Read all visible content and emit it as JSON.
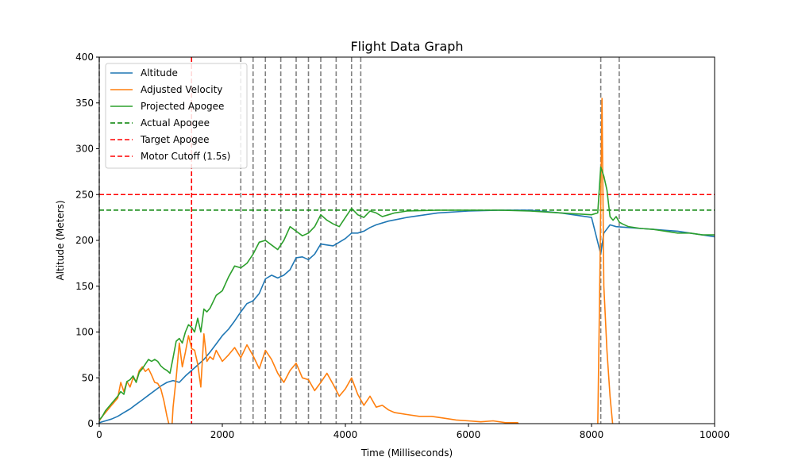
{
  "chart_data": {
    "type": "line",
    "title": "Flight Data Graph",
    "xlabel": "Time (Milliseconds)",
    "ylabel": "Altitude (Meters)",
    "xlim": [
      0,
      10000
    ],
    "ylim": [
      0,
      400
    ],
    "xticks": [
      0,
      2000,
      4000,
      6000,
      8000,
      10000
    ],
    "yticks": [
      0,
      50,
      100,
      150,
      200,
      250,
      300,
      350,
      400
    ],
    "grid": false,
    "legend_position": "top-left",
    "series": [
      {
        "name": "Altitude",
        "color": "#1f77b4",
        "style": "solid",
        "x": [
          0,
          100,
          200,
          300,
          400,
          500,
          600,
          700,
          800,
          900,
          1000,
          1100,
          1200,
          1300,
          1400,
          1500,
          1600,
          1700,
          1800,
          1900,
          2000,
          2100,
          2200,
          2300,
          2400,
          2500,
          2600,
          2700,
          2800,
          2900,
          3000,
          3100,
          3200,
          3300,
          3400,
          3500,
          3600,
          3700,
          3800,
          3900,
          4000,
          4100,
          4200,
          4300,
          4400,
          4500,
          4700,
          5000,
          5500,
          6000,
          6500,
          7000,
          7500,
          8000,
          8150,
          8200,
          8300,
          8400,
          8600,
          8800,
          9000,
          9200,
          9400,
          9600,
          9800,
          10000
        ],
        "y": [
          1,
          3,
          5,
          8,
          12,
          16,
          21,
          26,
          31,
          36,
          41,
          45,
          47,
          45,
          52,
          58,
          64,
          70,
          78,
          87,
          96,
          103,
          112,
          122,
          131,
          134,
          142,
          158,
          162,
          159,
          162,
          168,
          181,
          182,
          179,
          185,
          196,
          195,
          194,
          198,
          202,
          208,
          208,
          210,
          214,
          217,
          221,
          225,
          230,
          232,
          233,
          233,
          230,
          225,
          185,
          208,
          217,
          215,
          214,
          213,
          212,
          211,
          210,
          208,
          206,
          204
        ]
      },
      {
        "name": "Adjusted Velocity",
        "color": "#ff7f0e",
        "style": "solid",
        "x": [
          0,
          50,
          100,
          200,
          300,
          350,
          400,
          450,
          500,
          550,
          600,
          650,
          700,
          750,
          800,
          850,
          900,
          950,
          1000,
          1050,
          1100,
          1150,
          1180,
          1200,
          1250,
          1300,
          1350,
          1400,
          1450,
          1500,
          1550,
          1600,
          1650,
          1700,
          1750,
          1800,
          1850,
          1900,
          2000,
          2100,
          2200,
          2300,
          2400,
          2500,
          2600,
          2700,
          2800,
          2900,
          3000,
          3100,
          3200,
          3300,
          3400,
          3500,
          3600,
          3700,
          3800,
          3900,
          4000,
          4100,
          4200,
          4300,
          4400,
          4500,
          4600,
          4700,
          4800,
          5000,
          5200,
          5400,
          5600,
          5800,
          6000,
          6200,
          6400,
          6600,
          6800,
          6850,
          8100,
          8140,
          8170,
          8200,
          8250,
          8300,
          8350,
          8400
        ],
        "y": [
          3,
          8,
          12,
          20,
          28,
          45,
          35,
          46,
          40,
          50,
          46,
          58,
          62,
          57,
          60,
          53,
          45,
          44,
          38,
          25,
          8,
          -5,
          -5,
          18,
          50,
          88,
          62,
          78,
          96,
          82,
          80,
          65,
          40,
          98,
          68,
          73,
          70,
          80,
          68,
          75,
          83,
          72,
          86,
          74,
          60,
          80,
          70,
          55,
          45,
          58,
          66,
          50,
          48,
          36,
          45,
          55,
          43,
          30,
          38,
          50,
          32,
          20,
          30,
          18,
          20,
          15,
          12,
          10,
          8,
          8,
          6,
          4,
          3,
          2,
          3,
          1,
          1,
          -5,
          -5,
          180,
          355,
          150,
          80,
          30,
          -5,
          -5
        ]
      },
      {
        "name": "Projected Apogee",
        "color": "#2ca02c",
        "style": "solid",
        "x": [
          0,
          50,
          100,
          200,
          300,
          350,
          400,
          450,
          500,
          550,
          600,
          650,
          700,
          750,
          800,
          850,
          900,
          950,
          1000,
          1050,
          1100,
          1150,
          1200,
          1250,
          1300,
          1350,
          1400,
          1450,
          1500,
          1550,
          1600,
          1650,
          1700,
          1750,
          1800,
          1900,
          2000,
          2100,
          2200,
          2300,
          2400,
          2500,
          2600,
          2700,
          2800,
          2900,
          3000,
          3100,
          3200,
          3300,
          3400,
          3500,
          3600,
          3700,
          3800,
          3900,
          4000,
          4100,
          4200,
          4300,
          4400,
          4500,
          4600,
          4700,
          4800,
          5000,
          5500,
          6000,
          6500,
          7000,
          7500,
          8000,
          8100,
          8150,
          8200,
          8250,
          8300,
          8350,
          8400,
          8450,
          8500,
          8600,
          8800,
          9000,
          9200,
          9400,
          9600,
          9800,
          10000
        ],
        "y": [
          4,
          8,
          14,
          22,
          30,
          35,
          32,
          46,
          48,
          52,
          45,
          56,
          60,
          65,
          70,
          68,
          70,
          68,
          63,
          60,
          58,
          55,
          72,
          90,
          93,
          88,
          100,
          108,
          105,
          100,
          115,
          100,
          125,
          122,
          126,
          140,
          145,
          160,
          172,
          170,
          175,
          185,
          198,
          200,
          195,
          190,
          200,
          215,
          210,
          205,
          208,
          215,
          228,
          222,
          218,
          215,
          225,
          235,
          228,
          225,
          232,
          230,
          226,
          228,
          230,
          232,
          233,
          233,
          233,
          232,
          230,
          228,
          230,
          280,
          270,
          255,
          226,
          222,
          226,
          220,
          218,
          215,
          213,
          212,
          210,
          208,
          208,
          206,
          206
        ]
      },
      {
        "name": "Actual Apogee",
        "color": "#008000",
        "style": "dashed",
        "y_const": 233
      },
      {
        "name": "Target Apogee",
        "color": "#ff0000",
        "style": "dashed",
        "y_const": 250
      },
      {
        "name": "Motor Cutoff (1.5s)",
        "color": "#ff0000",
        "style": "dashed",
        "x_const": 1500
      }
    ],
    "event_lines": {
      "color": "#808080",
      "style": "dashed",
      "x": [
        0,
        2300,
        2500,
        2700,
        2950,
        3200,
        3400,
        3600,
        3850,
        4100,
        4250,
        8150,
        8450
      ]
    }
  }
}
